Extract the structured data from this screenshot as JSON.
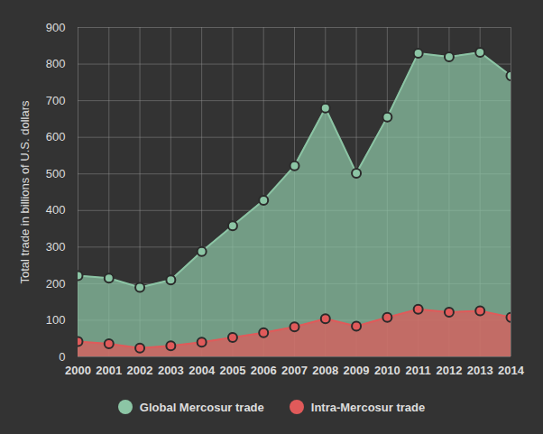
{
  "chart_data": {
    "type": "area",
    "y_label": "Total trade in billions of U.S. dollars",
    "x": [
      2000,
      2001,
      2002,
      2003,
      2004,
      2005,
      2006,
      2007,
      2008,
      2009,
      2010,
      2011,
      2012,
      2013,
      2014
    ],
    "series": [
      {
        "name": "Global Mercosur trade",
        "color": "#8cc5a5",
        "marker": "circle",
        "values": [
          222,
          215,
          190,
          210,
          288,
          358,
          428,
          522,
          680,
          502,
          655,
          830,
          820,
          832,
          768
        ]
      },
      {
        "name": "Intra-Mercosur trade",
        "color": "#e05a5a",
        "marker": "circle",
        "values": [
          42,
          36,
          24,
          30,
          40,
          53,
          66,
          82,
          104,
          84,
          108,
          130,
          122,
          126,
          108
        ]
      }
    ],
    "xlim": [
      2000,
      2014
    ],
    "xticks": [
      2000,
      2001,
      2002,
      2003,
      2004,
      2005,
      2006,
      2007,
      2008,
      2009,
      2010,
      2011,
      2012,
      2013,
      2014
    ],
    "ylim": [
      0,
      900
    ],
    "yticks": [
      0,
      100,
      200,
      300,
      400,
      500,
      600,
      700,
      800,
      900
    ],
    "grid": true,
    "legend": "bottom"
  }
}
